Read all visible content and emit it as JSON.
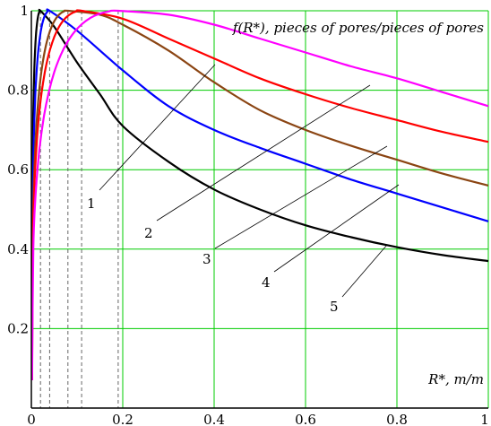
{
  "chart_data": {
    "type": "line",
    "ylabel": "f(R*), pieces of pores/pieces of pores",
    "xlabel": "R*, m/m",
    "xlim": [
      0,
      1
    ],
    "ylim": [
      0,
      1
    ],
    "x_ticks": [
      "0",
      "0.2",
      "0.4",
      "0.6",
      "0.8",
      "1"
    ],
    "y_ticks": [
      "0.2",
      "0.4",
      "0.6",
      "0.8",
      "1"
    ],
    "grid": true,
    "grid_color": "#00cc00",
    "peak_markers_x": [
      0.02,
      0.04,
      0.08,
      0.11,
      0.19
    ],
    "series": [
      {
        "name": "1",
        "color": "#000000",
        "peak_x": 0.02,
        "points": [
          [
            0.02,
            1.0
          ],
          [
            0.05,
            0.96
          ],
          [
            0.1,
            0.87
          ],
          [
            0.15,
            0.79
          ],
          [
            0.2,
            0.71
          ],
          [
            0.3,
            0.62
          ],
          [
            0.4,
            0.55
          ],
          [
            0.5,
            0.5
          ],
          [
            0.6,
            0.46
          ],
          [
            0.7,
            0.43
          ],
          [
            0.8,
            0.405
          ],
          [
            0.9,
            0.385
          ],
          [
            1.0,
            0.37
          ]
        ]
      },
      {
        "name": "2",
        "color": "#0000ff",
        "peak_x": 0.04,
        "points": [
          [
            0.04,
            1.0
          ],
          [
            0.1,
            0.95
          ],
          [
            0.2,
            0.85
          ],
          [
            0.3,
            0.76
          ],
          [
            0.4,
            0.7
          ],
          [
            0.5,
            0.655
          ],
          [
            0.6,
            0.615
          ],
          [
            0.7,
            0.575
          ],
          [
            0.8,
            0.54
          ],
          [
            0.9,
            0.505
          ],
          [
            1.0,
            0.47
          ]
        ]
      },
      {
        "name": "3",
        "color": "#8b4513",
        "peak_x": 0.08,
        "points": [
          [
            0.08,
            1.0
          ],
          [
            0.15,
            0.99
          ],
          [
            0.2,
            0.965
          ],
          [
            0.3,
            0.9
          ],
          [
            0.4,
            0.82
          ],
          [
            0.5,
            0.75
          ],
          [
            0.6,
            0.7
          ],
          [
            0.7,
            0.66
          ],
          [
            0.8,
            0.625
          ],
          [
            0.9,
            0.59
          ],
          [
            1.0,
            0.56
          ]
        ]
      },
      {
        "name": "4",
        "color": "#ff0000",
        "peak_x": 0.11,
        "points": [
          [
            0.11,
            1.0
          ],
          [
            0.2,
            0.98
          ],
          [
            0.3,
            0.93
          ],
          [
            0.4,
            0.88
          ],
          [
            0.5,
            0.83
          ],
          [
            0.6,
            0.79
          ],
          [
            0.7,
            0.755
          ],
          [
            0.8,
            0.725
          ],
          [
            0.9,
            0.695
          ],
          [
            1.0,
            0.67
          ]
        ]
      },
      {
        "name": "5",
        "color": "#ff00ff",
        "peak_x": 0.19,
        "points": [
          [
            0.19,
            1.0
          ],
          [
            0.3,
            0.99
          ],
          [
            0.4,
            0.965
          ],
          [
            0.5,
            0.93
          ],
          [
            0.6,
            0.895
          ],
          [
            0.7,
            0.86
          ],
          [
            0.8,
            0.83
          ],
          [
            0.9,
            0.795
          ],
          [
            1.0,
            0.76
          ]
        ]
      }
    ]
  }
}
